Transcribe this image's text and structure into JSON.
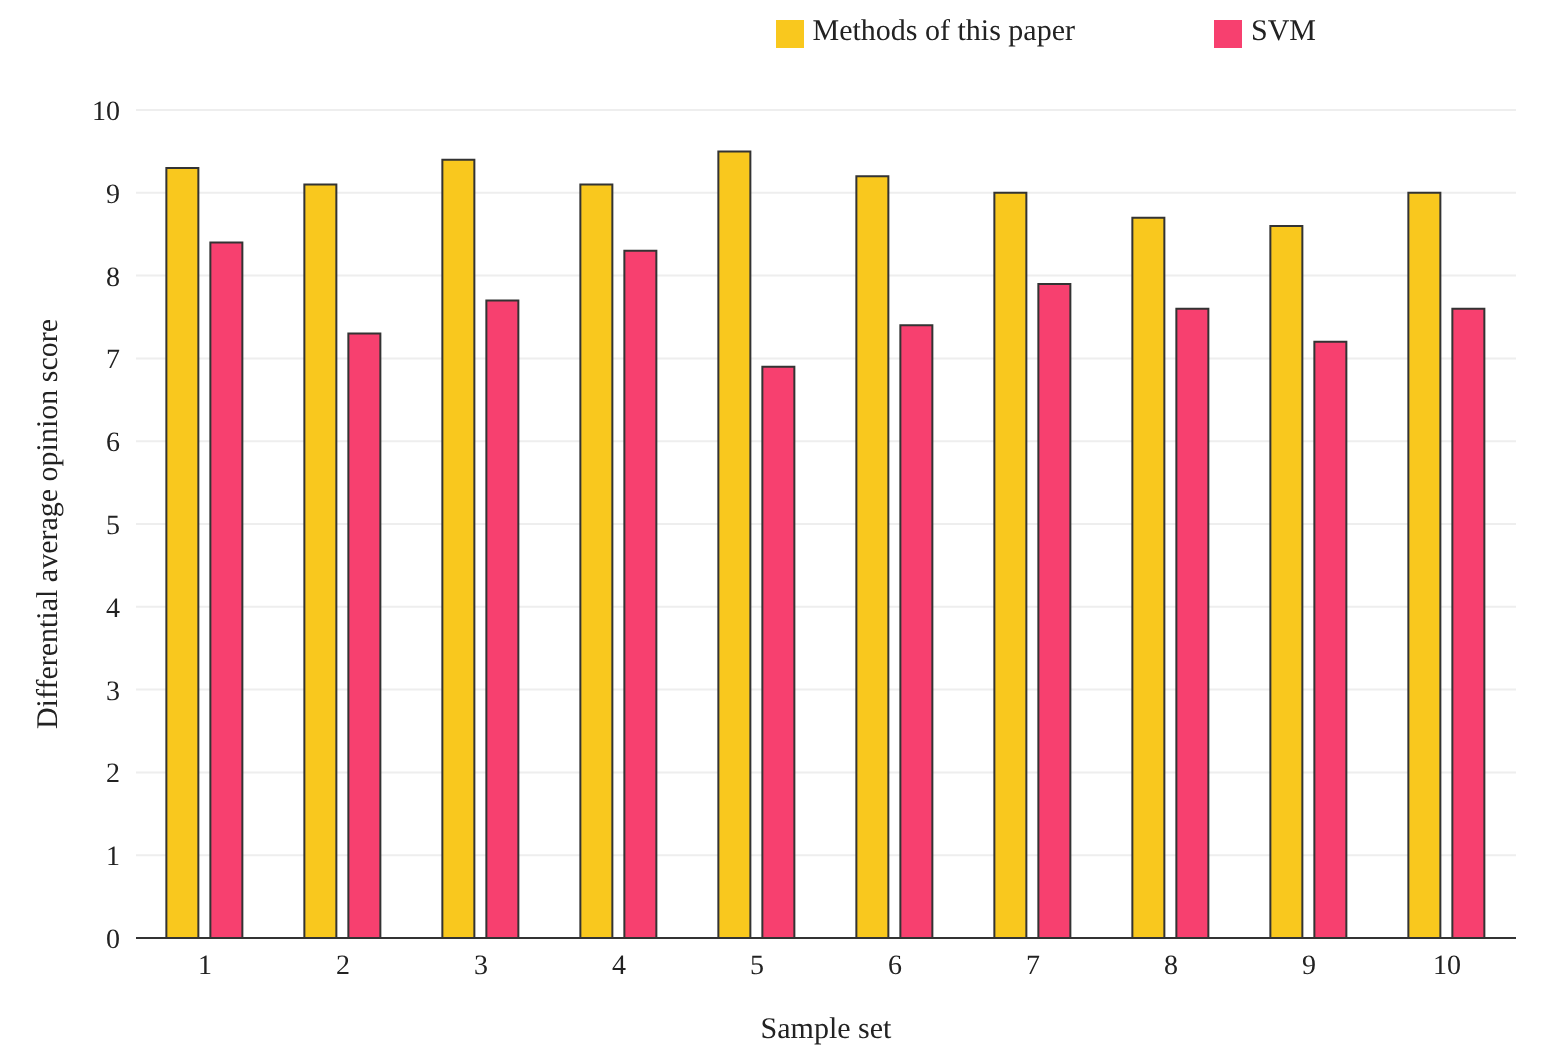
{
  "chart_data": {
    "type": "bar",
    "xlabel": "Sample set",
    "ylabel": "Differential average opinion score",
    "categories": [
      "1",
      "2",
      "3",
      "4",
      "5",
      "6",
      "7",
      "8",
      "9",
      "10"
    ],
    "series": [
      {
        "name": "Methods of this paper",
        "color": "#f9c81e",
        "values": [
          9.3,
          9.1,
          9.4,
          9.1,
          9.5,
          9.2,
          9.0,
          8.7,
          8.6,
          9.0
        ]
      },
      {
        "name": "SVM",
        "color": "#f7406f",
        "values": [
          8.4,
          7.3,
          7.7,
          8.3,
          6.9,
          7.4,
          7.9,
          7.6,
          7.2,
          7.6
        ]
      }
    ],
    "ylim": [
      0,
      10
    ],
    "yticks": [
      0,
      1,
      2,
      3,
      4,
      5,
      6,
      7,
      8,
      9,
      10
    ],
    "grid": "y",
    "legend": "top right"
  }
}
